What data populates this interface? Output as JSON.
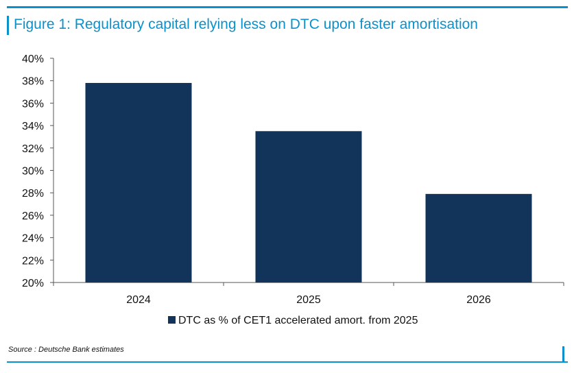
{
  "title": "Figure 1: Regulatory capital relying less on DTC upon faster amortisation",
  "source": "Source : Deutsche Bank estimates",
  "colors": {
    "accent": "#0a91cc",
    "bar": "#13345a",
    "axis": "#555555"
  },
  "chart_data": {
    "type": "bar",
    "categories": [
      "2024",
      "2025",
      "2026"
    ],
    "series": [
      {
        "name": "DTC as % of CET1 accelerated amort. from 2025",
        "values": [
          37.8,
          33.5,
          27.9
        ]
      }
    ],
    "ylim": [
      20,
      40
    ],
    "yticks": [
      "20%",
      "22%",
      "24%",
      "26%",
      "28%",
      "30%",
      "32%",
      "34%",
      "36%",
      "38%",
      "40%"
    ],
    "grid": false,
    "legend_position": "bottom"
  }
}
